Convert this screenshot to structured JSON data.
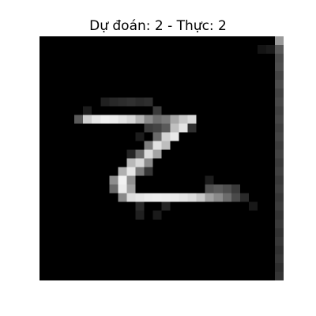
{
  "title": "Dự đoán: 2 - Thực: 2",
  "image": {
    "subject": "grayscale handwritten digit two",
    "background_color": "#000000",
    "stroke_color": "#ffffff"
  }
}
